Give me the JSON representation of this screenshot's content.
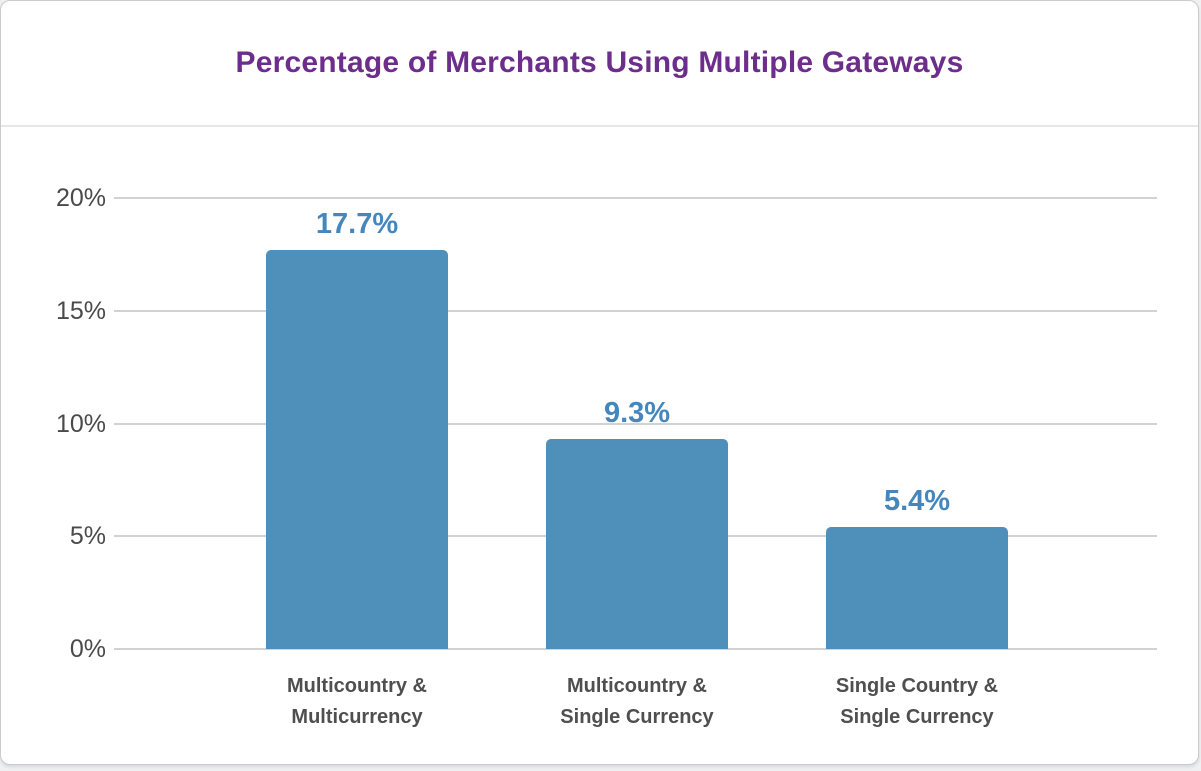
{
  "card": {
    "title": "Percentage of Merchants Using Multiple Gateways"
  },
  "chart_data": {
    "type": "bar",
    "title": "Percentage of Merchants Using Multiple Gateways",
    "categories": [
      "Multicountry & Multicurrency",
      "Multicountry & Single Currency",
      "Single Country & Single Currency"
    ],
    "xtick_lines": [
      [
        "Multicountry &",
        "Multicurrency"
      ],
      [
        "Multicountry &",
        "Single Currency"
      ],
      [
        "Single Country &",
        "Single Currency"
      ]
    ],
    "values": [
      17.7,
      9.3,
      5.4
    ],
    "value_labels": [
      "17.7%",
      "9.3%",
      "5.4%"
    ],
    "ylim": [
      0,
      20
    ],
    "yticks": [
      0,
      5,
      10,
      15,
      20
    ],
    "ytick_labels": [
      "0%",
      "5%",
      "10%",
      "15%",
      "20%"
    ],
    "xlabel": "",
    "ylabel": "",
    "grid": "horizontal-only",
    "legend": "none",
    "colors": {
      "bar": "#4f90ba",
      "value_label": "#4587bc",
      "title": "#6c2d8b",
      "ytick_label": "#4a4a4a",
      "xtick_label": "#4f4f4f",
      "gridline": "#d2d2d2"
    }
  }
}
